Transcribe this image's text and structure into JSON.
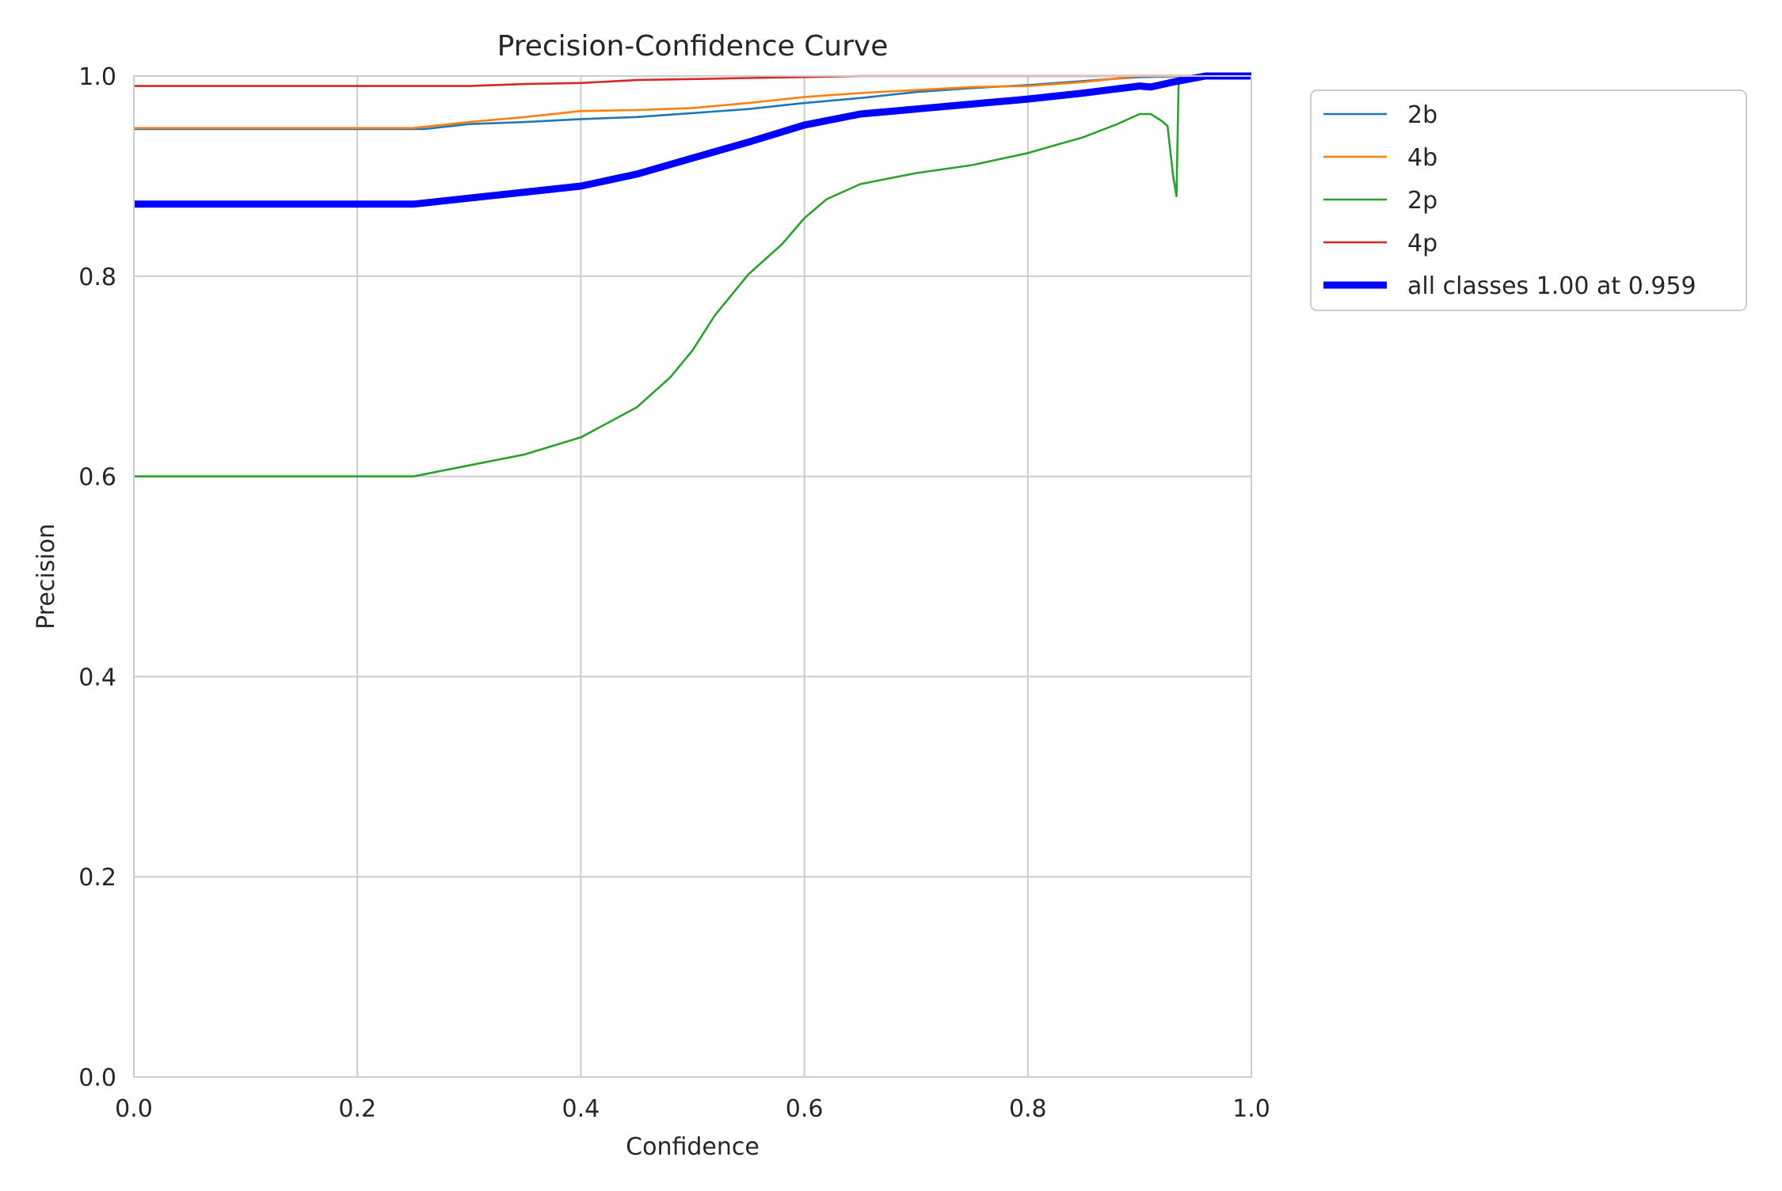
{
  "chart_data": {
    "type": "line",
    "title": "Precision-Confidence Curve",
    "xlabel": "Confidence",
    "ylabel": "Precision",
    "xlim": [
      0,
      1
    ],
    "ylim": [
      0,
      1
    ],
    "xticks": [
      "0.0",
      "0.2",
      "0.4",
      "0.6",
      "0.8",
      "1.0"
    ],
    "yticks": [
      "0.0",
      "0.2",
      "0.4",
      "0.6",
      "0.8",
      "1.0"
    ],
    "grid": true,
    "legend_position": "outside-top-right",
    "series": [
      {
        "name": "2b",
        "color": "#1f77b4",
        "x": [
          0,
          0.26,
          0.3,
          0.35,
          0.4,
          0.45,
          0.5,
          0.55,
          0.6,
          0.65,
          0.7,
          0.75,
          0.8,
          0.85,
          0.9,
          0.95,
          1.0
        ],
        "y": [
          0.947,
          0.947,
          0.952,
          0.954,
          0.957,
          0.959,
          0.963,
          0.967,
          0.973,
          0.978,
          0.984,
          0.988,
          0.991,
          0.995,
          0.999,
          1.0,
          1.0
        ]
      },
      {
        "name": "4b",
        "color": "#ff7f0e",
        "x": [
          0,
          0.25,
          0.3,
          0.35,
          0.4,
          0.45,
          0.5,
          0.55,
          0.6,
          0.65,
          0.7,
          0.75,
          0.8,
          0.85,
          0.9,
          0.95,
          1.0
        ],
        "y": [
          0.948,
          0.948,
          0.954,
          0.959,
          0.965,
          0.966,
          0.968,
          0.973,
          0.979,
          0.983,
          0.986,
          0.989,
          0.99,
          0.994,
          1.0,
          1.0,
          1.0
        ]
      },
      {
        "name": "2p",
        "color": "#2ca02c",
        "x": [
          0,
          0.25,
          0.3,
          0.35,
          0.4,
          0.45,
          0.48,
          0.5,
          0.52,
          0.55,
          0.58,
          0.6,
          0.62,
          0.65,
          0.7,
          0.75,
          0.8,
          0.85,
          0.88,
          0.9,
          0.91,
          0.92,
          0.925,
          0.93,
          0.933,
          0.935
        ],
        "y": [
          0.6,
          0.6,
          0.611,
          0.622,
          0.639,
          0.669,
          0.699,
          0.726,
          0.761,
          0.802,
          0.832,
          0.858,
          0.877,
          0.892,
          0.903,
          0.911,
          0.923,
          0.939,
          0.952,
          0.962,
          0.962,
          0.955,
          0.95,
          0.9,
          0.88,
          1.0
        ]
      },
      {
        "name": "4p",
        "color": "#d62728",
        "x": [
          0,
          0.3,
          0.35,
          0.4,
          0.45,
          0.5,
          0.55,
          0.6,
          0.65,
          0.7,
          0.8,
          0.9,
          1.0
        ],
        "y": [
          0.99,
          0.99,
          0.992,
          0.993,
          0.996,
          0.997,
          0.998,
          0.999,
          1.0,
          1.0,
          1.0,
          1.0,
          1.0
        ]
      },
      {
        "name": "all classes 1.00 at 0.959",
        "color": "#0000ff",
        "x": [
          0,
          0.25,
          0.3,
          0.35,
          0.4,
          0.45,
          0.5,
          0.55,
          0.6,
          0.65,
          0.7,
          0.75,
          0.8,
          0.85,
          0.9,
          0.91,
          0.93,
          0.959,
          1.0
        ],
        "y": [
          0.872,
          0.872,
          0.878,
          0.884,
          0.89,
          0.902,
          0.918,
          0.934,
          0.951,
          0.962,
          0.967,
          0.972,
          0.977,
          0.983,
          0.99,
          0.989,
          0.994,
          1.0,
          1.0
        ]
      }
    ]
  }
}
